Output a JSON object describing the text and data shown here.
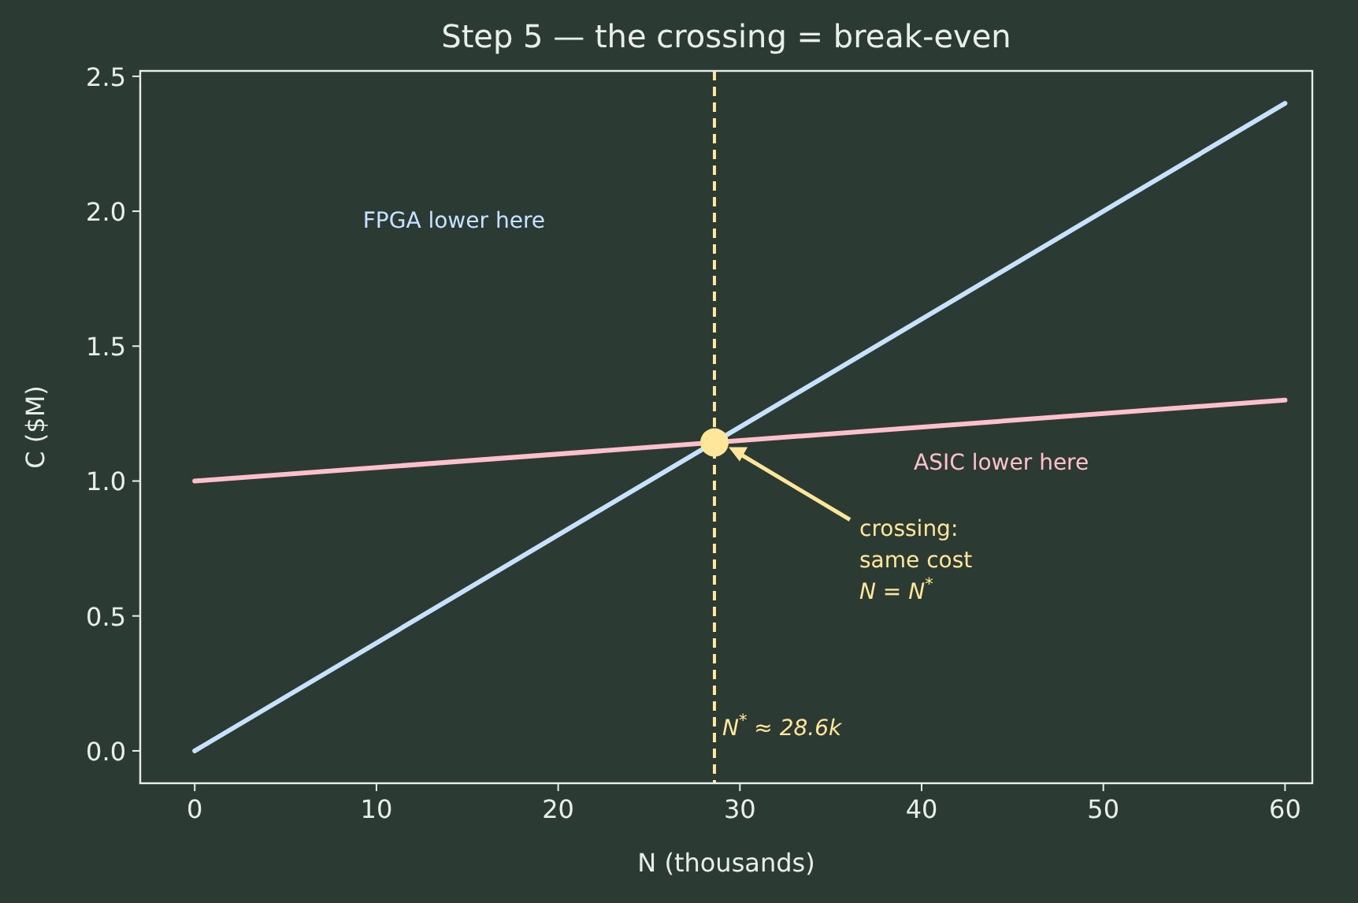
{
  "chart_data": {
    "type": "line",
    "title": "Step 5 — the crossing = break-even",
    "xlabel": "N  (thousands)",
    "ylabel": "C  ($M)",
    "xlim": [
      -3,
      61.5
    ],
    "ylim": [
      -0.12,
      2.52
    ],
    "xticks": [
      0,
      10,
      20,
      30,
      40,
      50,
      60
    ],
    "yticks": [
      {
        "value": 0,
        "label": "0.0"
      },
      0.5,
      {
        "value": 1,
        "label": "1.0"
      },
      1.5,
      {
        "value": 2,
        "label": "2.0"
      },
      2.5
    ],
    "series": [
      {
        "color": "#c6e2ff",
        "x": [
          0,
          60
        ],
        "values": [
          0,
          2.4
        ]
      },
      {
        "color": "#ffc0cb",
        "x": [
          0,
          60
        ],
        "values": [
          1.0,
          1.3
        ]
      },
      {
        "type": "scatter",
        "color": "#ffe699",
        "x": [
          28.6
        ],
        "values": [
          1.143
        ]
      }
    ],
    "ref_lines": [
      {
        "axis": "x",
        "value": 28.6,
        "label": "N$^{*}$ ≈ 28.6k",
        "color": "#ffe699",
        "line_style": "dashed"
      }
    ],
    "annotations": [
      "FPGA lower here",
      "ASIC lower here",
      "crossing:\nsame cost\nN = N$^{*}$"
    ],
    "grid": false,
    "line_style": "solid"
  }
}
